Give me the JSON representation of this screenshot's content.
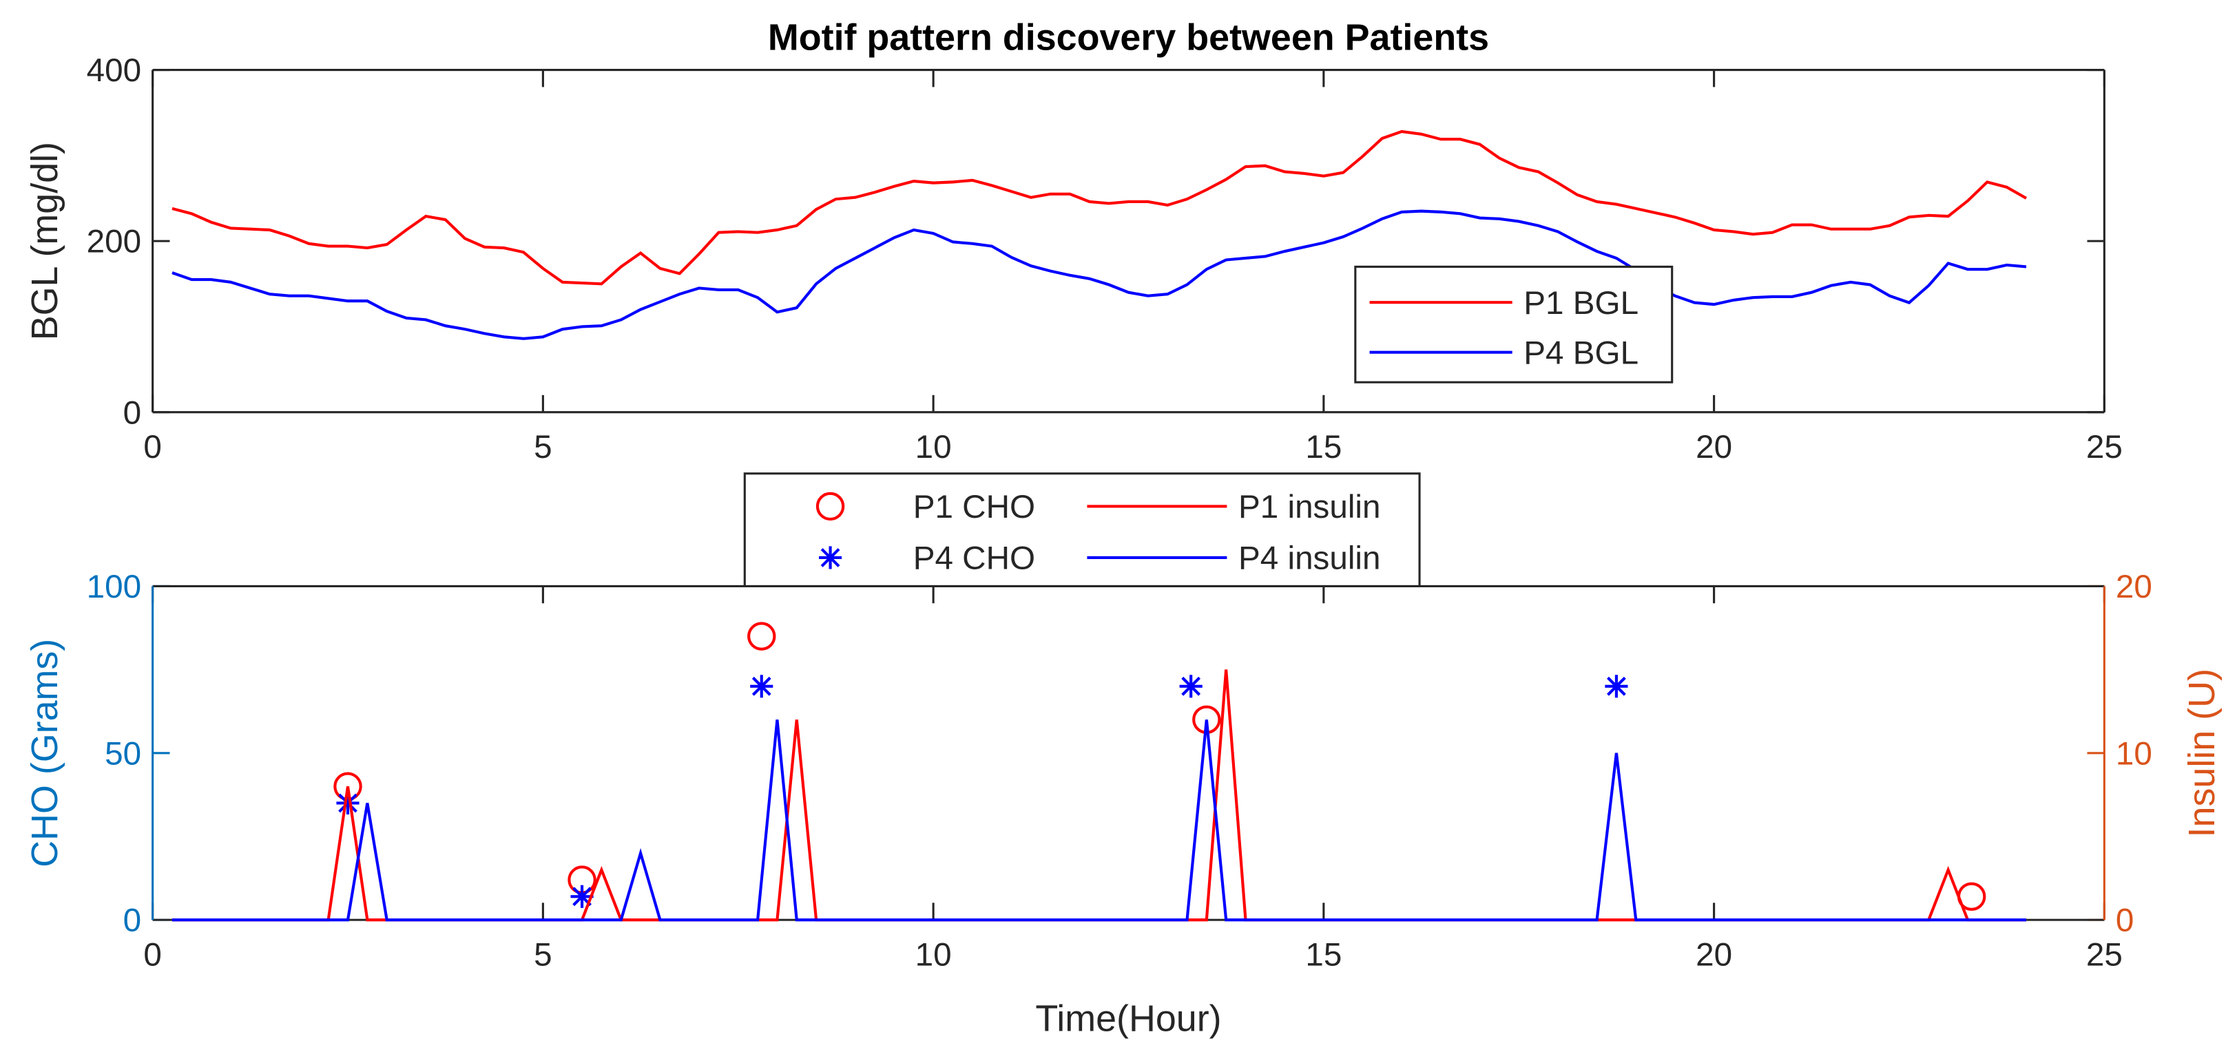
{
  "chart_data": [
    {
      "type": "line",
      "title": "Motif pattern discovery between Patients",
      "ylabel": "BGL (mg/dl)",
      "xlim": [
        0,
        25
      ],
      "xticks": [
        0,
        5,
        10,
        15,
        20,
        25
      ],
      "ylim": [
        0,
        400
      ],
      "yticks": [
        0,
        200,
        400
      ],
      "legend": "southeast",
      "series": [
        {
          "name": "P1 BGL",
          "color": "#ff0000",
          "x": [
            0.25,
            0.5,
            0.75,
            1,
            1.25,
            1.5,
            1.75,
            2,
            2.25,
            2.5,
            2.75,
            3,
            3.25,
            3.5,
            3.75,
            4,
            4.25,
            4.5,
            4.75,
            5,
            5.25,
            5.5,
            5.75,
            6,
            6.25,
            6.5,
            6.75,
            7,
            7.25,
            7.5,
            7.75,
            8,
            8.25,
            8.5,
            8.75,
            9,
            9.25,
            9.5,
            9.75,
            10,
            10.25,
            10.5,
            10.75,
            11,
            11.25,
            11.5,
            11.75,
            12,
            12.25,
            12.5,
            12.75,
            13,
            13.25,
            13.5,
            13.75,
            14,
            14.25,
            14.5,
            14.75,
            15,
            15.25,
            15.5,
            15.75,
            16,
            16.25,
            16.5,
            16.75,
            17,
            17.25,
            17.5,
            17.75,
            18,
            18.25,
            18.5,
            18.75,
            19,
            19.25,
            19.5,
            19.75,
            20,
            20.25,
            20.5,
            20.75,
            21,
            21.25,
            21.5,
            21.75,
            22,
            22.25,
            22.5,
            22.75,
            23,
            23.25,
            23.5,
            23.75,
            24
          ],
          "values": [
            238,
            232,
            222,
            215,
            214,
            213,
            206,
            197,
            194,
            194,
            192,
            196,
            213,
            229,
            225,
            203,
            193,
            192,
            187,
            168,
            152,
            151,
            150,
            170,
            186,
            168,
            162,
            185,
            210,
            211,
            210,
            213,
            218,
            237,
            249,
            251,
            257,
            264,
            270,
            268,
            269,
            271,
            265,
            258,
            251,
            255,
            255,
            246,
            244,
            246,
            246,
            242,
            249,
            260,
            272,
            287,
            288,
            281,
            279,
            276,
            280,
            299,
            320,
            328,
            325,
            319,
            319,
            313,
            297,
            286,
            281,
            268,
            254,
            246,
            243,
            238,
            233,
            228,
            221,
            213,
            211,
            208,
            210,
            219,
            219,
            214,
            214,
            214,
            218,
            228,
            230,
            229,
            247,
            269,
            263,
            250
          ]
        },
        {
          "name": "P4 BGL",
          "color": "#0000ff",
          "x": [
            0.25,
            0.5,
            0.75,
            1,
            1.25,
            1.5,
            1.75,
            2,
            2.25,
            2.5,
            2.75,
            3,
            3.25,
            3.5,
            3.75,
            4,
            4.25,
            4.5,
            4.75,
            5,
            5.25,
            5.5,
            5.75,
            6,
            6.25,
            6.5,
            6.75,
            7,
            7.25,
            7.5,
            7.75,
            8,
            8.25,
            8.5,
            8.75,
            9,
            9.25,
            9.5,
            9.75,
            10,
            10.25,
            10.5,
            10.75,
            11,
            11.25,
            11.5,
            11.75,
            12,
            12.25,
            12.5,
            12.75,
            13,
            13.25,
            13.5,
            13.75,
            14,
            14.25,
            14.5,
            14.75,
            15,
            15.25,
            15.5,
            15.75,
            16,
            16.25,
            16.5,
            16.75,
            17,
            17.25,
            17.5,
            17.75,
            18,
            18.25,
            18.5,
            18.75,
            19,
            19.25,
            19.5,
            19.75,
            20,
            20.25,
            20.5,
            20.75,
            21,
            21.25,
            21.5,
            21.75,
            22,
            22.25,
            22.5,
            22.75,
            23,
            23.25,
            23.5,
            23.75,
            24
          ],
          "values": [
            163,
            155,
            155,
            152,
            145,
            138,
            136,
            136,
            133,
            130,
            130,
            118,
            110,
            108,
            101,
            97,
            92,
            88,
            86,
            88,
            97,
            100,
            101,
            108,
            120,
            129,
            138,
            145,
            143,
            143,
            134,
            117,
            122,
            150,
            168,
            180,
            192,
            204,
            213,
            209,
            199,
            197,
            194,
            181,
            171,
            165,
            160,
            156,
            149,
            140,
            136,
            138,
            149,
            167,
            178,
            180,
            182,
            188,
            193,
            198,
            205,
            215,
            226,
            234,
            235,
            234,
            232,
            227,
            226,
            223,
            218,
            211,
            199,
            188,
            180,
            166,
            148,
            136,
            128,
            126,
            131,
            134,
            135,
            135,
            140,
            148,
            152,
            149,
            136,
            128,
            148,
            174,
            167,
            167,
            172,
            170
          ]
        }
      ]
    },
    {
      "type": "combo",
      "xlabel": "Time(Hour)",
      "ylabel": "CHO (Grams)",
      "y2label": "Insulin (U)",
      "xlim": [
        0,
        25
      ],
      "xticks": [
        0,
        5,
        10,
        15,
        20,
        25
      ],
      "ylim": [
        0,
        100
      ],
      "yticks": [
        0,
        50,
        100
      ],
      "y2lim": [
        0,
        20
      ],
      "y2ticks": [
        0,
        10,
        20
      ],
      "ycolor": "#0072bd",
      "y2color": "#d95319",
      "legend": "northoutside",
      "series": [
        {
          "name": "P1 CHO",
          "type": "scatter",
          "marker": "o",
          "color": "#ff0000",
          "x": [
            2.5,
            5.5,
            7.8,
            13.5,
            23.3
          ],
          "values": [
            40,
            12,
            85,
            60,
            7
          ]
        },
        {
          "name": "P4 CHO",
          "type": "scatter",
          "marker": "*",
          "color": "#0000ff",
          "x": [
            2.5,
            5.5,
            7.8,
            13.3,
            18.75
          ],
          "values": [
            35,
            7,
            70,
            70,
            70
          ]
        },
        {
          "name": "P1 insulin",
          "type": "line",
          "axis": "y2",
          "color": "#ff0000",
          "x": [
            0.25,
            2.25,
            2.5,
            2.75,
            5.5,
            5.75,
            6,
            8,
            8.25,
            8.5,
            13.5,
            13.75,
            14,
            22.75,
            23,
            23.25,
            24
          ],
          "values": [
            0,
            0,
            8,
            0,
            0,
            3,
            0,
            0,
            12,
            0,
            0,
            15,
            0,
            0,
            3,
            0,
            0
          ]
        },
        {
          "name": "P4 insulin",
          "type": "line",
          "axis": "y2",
          "color": "#0000ff",
          "x": [
            0.25,
            2.5,
            2.75,
            3,
            6,
            6.25,
            6.5,
            7.75,
            8,
            8.25,
            13.25,
            13.5,
            13.75,
            18.5,
            18.75,
            19,
            24
          ],
          "values": [
            0,
            0,
            7,
            0,
            0,
            4,
            0,
            0,
            12,
            0,
            0,
            12,
            0,
            0,
            10,
            0,
            0
          ]
        }
      ]
    }
  ]
}
